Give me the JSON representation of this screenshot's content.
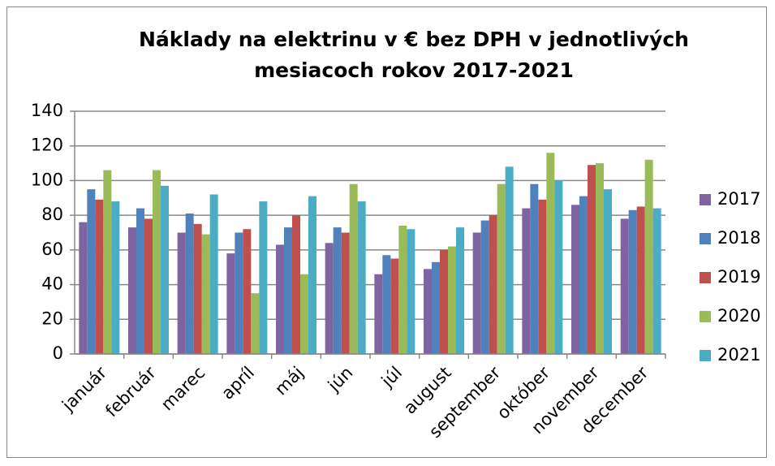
{
  "chart_data": {
    "type": "bar",
    "title": "Náklady na elektrinu v € bez DPH v jednotlivých mesiacoch rokov 2017-2021",
    "categories": [
      "január",
      "február",
      "marec",
      "apríl",
      "máj",
      "jún",
      "júl",
      "august",
      "september",
      "október",
      "november",
      "december"
    ],
    "series": [
      {
        "name": "2017",
        "color": "#8064A2",
        "values": [
          76,
          73,
          70,
          58,
          63,
          64,
          46,
          49,
          70,
          84,
          86,
          78
        ]
      },
      {
        "name": "2018",
        "color": "#4F81BD",
        "values": [
          95,
          84,
          81,
          70,
          73,
          73,
          57,
          53,
          77,
          98,
          91,
          83
        ]
      },
      {
        "name": "2019",
        "color": "#C0504D",
        "values": [
          89,
          78,
          75,
          72,
          80,
          70,
          55,
          60,
          80,
          89,
          109,
          85
        ]
      },
      {
        "name": "2020",
        "color": "#9BBB59",
        "values": [
          106,
          106,
          69,
          35,
          46,
          98,
          74,
          62,
          98,
          116,
          110,
          112
        ]
      },
      {
        "name": "2021",
        "color": "#4BACC6",
        "values": [
          88,
          97,
          92,
          88,
          91,
          88,
          72,
          73,
          108,
          100,
          95,
          84
        ]
      }
    ],
    "ylim": [
      0,
      140
    ],
    "yticks": [
      0,
      20,
      40,
      60,
      80,
      100,
      120,
      140
    ],
    "grid": true,
    "legend": "right"
  }
}
